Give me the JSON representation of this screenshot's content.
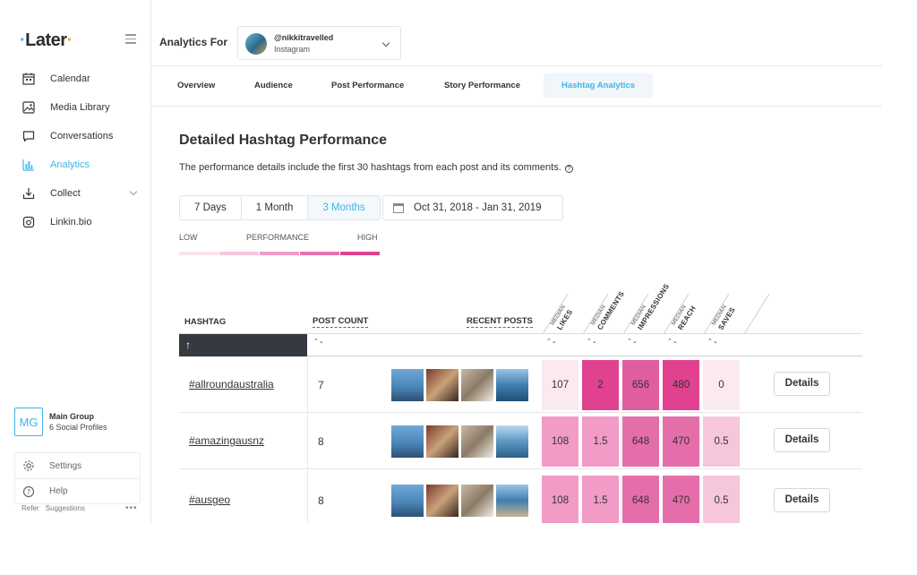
{
  "brand": {
    "logo_text": "Later"
  },
  "sidebar": {
    "items": [
      {
        "label": "Calendar",
        "icon": "calendar-icon"
      },
      {
        "label": "Media Library",
        "icon": "image-icon"
      },
      {
        "label": "Conversations",
        "icon": "chat-icon"
      },
      {
        "label": "Analytics",
        "icon": "bar-chart-icon",
        "active": true
      },
      {
        "label": "Collect",
        "icon": "download-icon"
      },
      {
        "label": "Linkin.bio",
        "icon": "instagram-icon"
      }
    ],
    "group": {
      "initials": "MG",
      "name": "Main Group",
      "profiles": "6 Social Profiles"
    },
    "settings_label": "Settings",
    "help_label": "Help",
    "refer_label": "Refer",
    "suggestions_label": "Suggestions",
    "more_label": "•••"
  },
  "header": {
    "analytics_for": "Analytics For",
    "account": {
      "handle": "@nikkitravelled",
      "network": "Instagram"
    }
  },
  "tabs": [
    "Overview",
    "Audience",
    "Post Performance",
    "Story Performance",
    "Hashtag Analytics"
  ],
  "main": {
    "title": "Detailed Hashtag Performance",
    "description": "The performance details include the first 30 hashtags from each post and its comments.",
    "help_glyph": "?",
    "ranges": [
      "7 Days",
      "1 Month",
      "3 Months"
    ],
    "active_range": "3 Months",
    "date_range": "Oct 31, 2018 - Jan 31, 2019",
    "legend": {
      "low": "LOW",
      "mid": "PERFORMANCE",
      "high": "HIGH"
    }
  },
  "table": {
    "headers": {
      "hashtag": "HASHTAG",
      "post_count": "POST COUNT",
      "recent_posts": "RECENT POSTS",
      "median": "MEDIAN",
      "metrics": [
        "LIKES",
        "COMMENTS",
        "IMPRESSIONS",
        "REACH",
        "SAVES"
      ]
    },
    "sort_arrow": "↑",
    "sort_glyph": "⌃⌄",
    "details_label": "Details",
    "rows": [
      {
        "hashtag": "#allroundaustralia",
        "post_count": "7",
        "metrics": [
          "107",
          "2",
          "656",
          "480",
          "0"
        ]
      },
      {
        "hashtag": "#amazingausnz",
        "post_count": "8",
        "metrics": [
          "108",
          "1.5",
          "648",
          "470",
          "0.5"
        ]
      },
      {
        "hashtag": "#ausgeo",
        "post_count": "8",
        "metrics": [
          "108",
          "1.5",
          "648",
          "470",
          "0.5"
        ]
      }
    ],
    "cell_colors": [
      [
        "#fbe9f2",
        "#e0428f",
        "#e05ea0",
        "#e0428f",
        "#fbe9f2"
      ],
      [
        "#f19bc6",
        "#f19bc6",
        "#e56eaa",
        "#e56eaa",
        "#f6c6dd"
      ],
      [
        "#f19bc6",
        "#f19bc6",
        "#e56eaa",
        "#e56eaa",
        "#f6c6dd"
      ]
    ]
  },
  "colors": {
    "accent": "#3fb5e8",
    "dark": "#343a40",
    "pink_high": "#e0428f",
    "pink_low": "#fbe9f2"
  }
}
